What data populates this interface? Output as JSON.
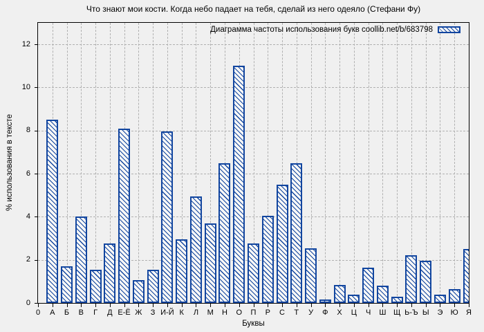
{
  "title": "Что знают мои кости. Когда небо падает на тебя, сделай из него одеяло (Стефани Фу)",
  "legend": {
    "label": "Диаграмма частоты использования букв coollib.net/b/683798",
    "swatch_icon": "hatched-bar-swatch"
  },
  "axes": {
    "ylabel": "% использования в тексте",
    "xlabel": "Буквы",
    "origin_tick": "0",
    "yticks": [
      0,
      2,
      4,
      6,
      8,
      10,
      12
    ]
  },
  "colors": {
    "bar_blue": "#11459f",
    "background": "#f0f0f0",
    "grid": "#b0b0b0",
    "axis": "#000000"
  },
  "chart_data": {
    "type": "bar",
    "title": "Что знают мои кости. Когда небо падает на тебя, сделай из него одеяло (Стефани Фу)",
    "legend_label": "Диаграмма частоты использования букв coollib.net/b/683798",
    "legend_position": "top-right-inside",
    "bar_style": "blue-diagonal-hatch",
    "grid": true,
    "xlabel": "Буквы",
    "ylabel": "% использования в тексте",
    "ylim": [
      0,
      13
    ],
    "yticks": [
      0,
      2,
      4,
      6,
      8,
      10,
      12
    ],
    "categories": [
      "А",
      "Б",
      "В",
      "Г",
      "Д",
      "Е-Ё",
      "Ж",
      "З",
      "И-Й",
      "К",
      "Л",
      "М",
      "Н",
      "О",
      "П",
      "Р",
      "С",
      "Т",
      "У",
      "Ф",
      "Х",
      "Ц",
      "Ч",
      "Ш",
      "Щ",
      "Ь-Ъ",
      "Ы",
      "Э",
      "Ю",
      "Я"
    ],
    "values": [
      8.5,
      1.7,
      4.0,
      1.55,
      2.75,
      8.1,
      1.05,
      1.55,
      7.95,
      2.95,
      4.95,
      3.7,
      6.5,
      11.0,
      2.75,
      4.05,
      5.5,
      6.5,
      2.55,
      0.15,
      0.85,
      0.4,
      1.65,
      0.8,
      0.3,
      2.2,
      1.95,
      0.4,
      0.65,
      2.5
    ]
  }
}
